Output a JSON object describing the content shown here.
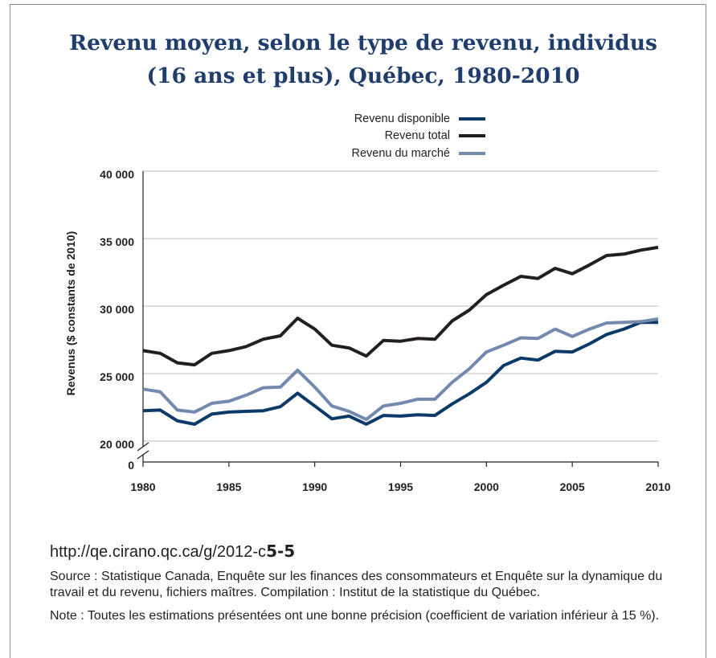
{
  "chart_data": {
    "type": "line",
    "title": "Revenu moyen, selon le type de revenu, individus\n(16 ans et plus), Québec, 1980-2010",
    "ylabel": "Revenus ($ constants de 2010)",
    "xlim": [
      1980,
      2010
    ],
    "ylim": [
      20000,
      40000
    ],
    "y_axis_break": true,
    "grid": true,
    "legend_position": "top-right",
    "x": [
      1980,
      1981,
      1982,
      1983,
      1984,
      1985,
      1986,
      1987,
      1988,
      1989,
      1990,
      1991,
      1992,
      1993,
      1994,
      1995,
      1996,
      1997,
      1998,
      1999,
      2000,
      2001,
      2002,
      2003,
      2004,
      2005,
      2006,
      2007,
      2008,
      2009,
      2010
    ],
    "x_ticks": [
      1980,
      1985,
      1990,
      1995,
      2000,
      2005,
      2010
    ],
    "y_ticks": [
      {
        "value": 0,
        "label": "0"
      },
      {
        "value": 20000,
        "label": "20 000"
      },
      {
        "value": 25000,
        "label": "25 000"
      },
      {
        "value": 30000,
        "label": "30 000"
      },
      {
        "value": 35000,
        "label": "35 000"
      },
      {
        "value": 40000,
        "label": "40 000"
      }
    ],
    "series": [
      {
        "name": "Revenu disponible",
        "color": "#0b3a68",
        "values": [
          22250,
          22300,
          21500,
          21250,
          22000,
          22150,
          22200,
          22250,
          22550,
          23550,
          22600,
          21650,
          21850,
          21250,
          21900,
          21850,
          21950,
          21900,
          22750,
          23500,
          24350,
          25600,
          26150,
          26000,
          26650,
          26600,
          27200,
          27900,
          28300,
          28800,
          28800
        ]
      },
      {
        "name": "Revenu total",
        "color": "#231f20",
        "values": [
          26700,
          26500,
          25800,
          25650,
          26500,
          26700,
          27000,
          27550,
          27800,
          29100,
          28300,
          27100,
          26900,
          26300,
          27450,
          27400,
          27600,
          27550,
          28900,
          29700,
          30850,
          31550,
          32200,
          32050,
          32800,
          32400,
          33050,
          33750,
          33850,
          34150,
          34350
        ]
      },
      {
        "name": "Revenu du marché",
        "color": "#7389ae",
        "values": [
          23850,
          23650,
          22300,
          22150,
          22800,
          22950,
          23400,
          23950,
          24000,
          25250,
          24000,
          22600,
          22200,
          21600,
          22600,
          22800,
          23100,
          23100,
          24350,
          25350,
          26600,
          27100,
          27650,
          27600,
          28300,
          27750,
          28300,
          28750,
          28800,
          28850,
          29050
        ]
      }
    ]
  },
  "footer": {
    "url_text": "http://qe.cirano.qc.ca/g/2012-c",
    "url_bold": "5-5",
    "source": "Source : Statistique Canada, Enquête sur les finances des consommateurs et Enquête sur la dynamique du\ntravail et du revenu, fichiers maîtres. Compilation : Institut de la statistique du Québec.",
    "note": "Note : Toutes les estimations présentées ont une bonne précision (coefficient de variation inférieur à 15 %)."
  }
}
